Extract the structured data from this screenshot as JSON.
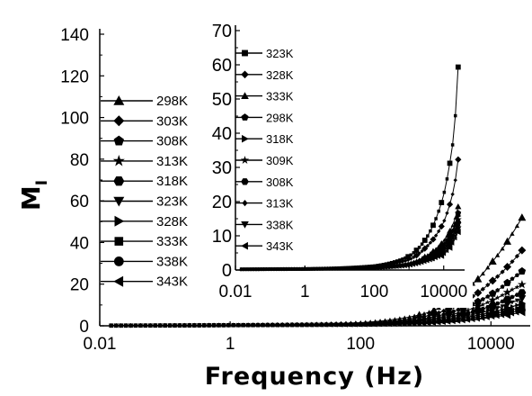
{
  "chart_data": [
    {
      "type": "line",
      "xlabel": "Frequency (Hz)",
      "ylabel": "M",
      "ylabel_sub": "I",
      "x_scale": "log",
      "xlim": [
        0.01,
        40000
      ],
      "ylim": [
        0,
        140
      ],
      "x_ticks": [
        {
          "value": 0.01,
          "label": "0.01"
        },
        {
          "value": 1,
          "label": "1"
        },
        {
          "value": 100,
          "label": "100"
        },
        {
          "value": 10000,
          "label": "10000"
        }
      ],
      "y_ticks": [
        {
          "value": 0,
          "label": "0"
        },
        {
          "value": 20,
          "label": "20"
        },
        {
          "value": 40,
          "label": "40"
        },
        {
          "value": 60,
          "label": "60"
        },
        {
          "value": 80,
          "label": "80"
        },
        {
          "value": 100,
          "label": "100"
        },
        {
          "value": 120,
          "label": "120"
        },
        {
          "value": 140,
          "label": "140"
        }
      ],
      "legend_position": "left",
      "series": [
        {
          "name": "298K",
          "marker": "triangle-up",
          "values": [
            [
              0.015,
              0.1
            ],
            [
              1,
              0.3
            ],
            [
              100,
              1.5
            ],
            [
              1000,
              6
            ],
            [
              3000,
              14
            ],
            [
              10000,
              30
            ],
            [
              20000,
              43
            ],
            [
              35000,
              56
            ]
          ]
        },
        {
          "name": "303K",
          "marker": "diamond",
          "values": [
            [
              0.015,
              0.1
            ],
            [
              1,
              0.3
            ],
            [
              100,
              1.2
            ],
            [
              1000,
              4.5
            ],
            [
              3000,
              10
            ],
            [
              10000,
              21
            ],
            [
              20000,
              30
            ],
            [
              35000,
              39
            ]
          ]
        },
        {
          "name": "308K",
          "marker": "pentagon",
          "values": [
            [
              0.015,
              0.1
            ],
            [
              1,
              0.3
            ],
            [
              100,
              1.0
            ],
            [
              1000,
              3.5
            ],
            [
              3000,
              7.5
            ],
            [
              10000,
              15
            ],
            [
              20000,
              22
            ],
            [
              35000,
              28
            ]
          ]
        },
        {
          "name": "313K",
          "marker": "star",
          "values": [
            [
              0.015,
              0.1
            ],
            [
              1,
              0.3
            ],
            [
              100,
              0.9
            ],
            [
              1000,
              3
            ],
            [
              3000,
              6
            ],
            [
              10000,
              12
            ],
            [
              20000,
              17
            ],
            [
              35000,
              21
            ]
          ]
        },
        {
          "name": "318K",
          "marker": "hexagon",
          "values": [
            [
              0.015,
              0.1
            ],
            [
              1,
              0.3
            ],
            [
              100,
              0.8
            ],
            [
              1000,
              2.5
            ],
            [
              3000,
              5
            ],
            [
              10000,
              9.5
            ],
            [
              20000,
              13.5
            ],
            [
              35000,
              17
            ]
          ]
        },
        {
          "name": "323K",
          "marker": "triangle-down",
          "values": [
            [
              0.015,
              0.1
            ],
            [
              1,
              0.3
            ],
            [
              100,
              0.7
            ],
            [
              1000,
              2
            ],
            [
              3000,
              4
            ],
            [
              10000,
              7.5
            ],
            [
              20000,
              11
            ],
            [
              35000,
              14
            ]
          ]
        },
        {
          "name": "328K",
          "marker": "triangle-right",
          "values": [
            [
              0.015,
              0.1
            ],
            [
              1,
              0.3
            ],
            [
              100,
              0.6
            ],
            [
              1000,
              1.8
            ],
            [
              3000,
              3.5
            ],
            [
              10000,
              6.5
            ],
            [
              20000,
              9
            ],
            [
              35000,
              11.5
            ]
          ]
        },
        {
          "name": "333K",
          "marker": "square",
          "values": [
            [
              0.015,
              0.1
            ],
            [
              1,
              0.3
            ],
            [
              100,
              0.5
            ],
            [
              1000,
              1.5
            ],
            [
              3000,
              3
            ],
            [
              10000,
              5.5
            ],
            [
              20000,
              7.5
            ],
            [
              35000,
              9.5
            ]
          ]
        },
        {
          "name": "338K",
          "marker": "circle",
          "values": [
            [
              0.015,
              0.1
            ],
            [
              1,
              0.3
            ],
            [
              100,
              0.5
            ],
            [
              1000,
              1.2
            ],
            [
              3000,
              2.5
            ],
            [
              10000,
              4.5
            ],
            [
              20000,
              6.5
            ],
            [
              35000,
              8
            ]
          ]
        },
        {
          "name": "343K",
          "marker": "triangle-left",
          "values": [
            [
              0.015,
              0.1
            ],
            [
              1,
              0.3
            ],
            [
              100,
              0.4
            ],
            [
              1000,
              1
            ],
            [
              3000,
              2
            ],
            [
              10000,
              4
            ],
            [
              20000,
              5.5
            ],
            [
              35000,
              7
            ]
          ]
        }
      ]
    },
    {
      "type": "line",
      "x_scale": "log",
      "xlim": [
        0.01,
        40000
      ],
      "ylim": [
        0,
        70
      ],
      "x_ticks": [
        {
          "value": 0.01,
          "label": "0.01"
        },
        {
          "value": 1,
          "label": "1"
        },
        {
          "value": 100,
          "label": "100"
        },
        {
          "value": 10000,
          "label": "10000"
        }
      ],
      "y_ticks": [
        {
          "value": 0,
          "label": "0"
        },
        {
          "value": 10,
          "label": "10"
        },
        {
          "value": 20,
          "label": "20"
        },
        {
          "value": 30,
          "label": "30"
        },
        {
          "value": 40,
          "label": "40"
        },
        {
          "value": 50,
          "label": "50"
        },
        {
          "value": 60,
          "label": "60"
        },
        {
          "value": 70,
          "label": "70"
        }
      ],
      "legend_position": "left",
      "series": [
        {
          "name": "323K",
          "marker": "square",
          "values": [
            [
              0.015,
              0.2
            ],
            [
              1,
              0.3
            ],
            [
              100,
              1.2
            ],
            [
              1000,
              4
            ],
            [
              3000,
              9
            ],
            [
              10000,
              22
            ],
            [
              20000,
              40
            ],
            [
              28000,
              66
            ]
          ]
        },
        {
          "name": "328K",
          "marker": "diamond",
          "values": [
            [
              0.015,
              0.2
            ],
            [
              1,
              0.3
            ],
            [
              100,
              1.0
            ],
            [
              1000,
              3
            ],
            [
              3000,
              6.5
            ],
            [
              10000,
              14
            ],
            [
              20000,
              24
            ],
            [
              28000,
              35
            ]
          ]
        },
        {
          "name": "333K",
          "marker": "triangle-up",
          "values": [
            [
              0.015,
              0.2
            ],
            [
              1,
              0.3
            ],
            [
              100,
              0.8
            ],
            [
              1000,
              2
            ],
            [
              3000,
              4
            ],
            [
              10000,
              8.5
            ],
            [
              20000,
              14
            ],
            [
              28000,
              20
            ]
          ]
        },
        {
          "name": "298K",
          "marker": "pentagon",
          "values": [
            [
              0.015,
              0.2
            ],
            [
              1,
              0.3
            ],
            [
              100,
              0.7
            ],
            [
              1000,
              1.8
            ],
            [
              3000,
              3.5
            ],
            [
              10000,
              7.5
            ],
            [
              20000,
              12.5
            ],
            [
              28000,
              18
            ]
          ]
        },
        {
          "name": "318K",
          "marker": "triangle-right",
          "values": [
            [
              0.015,
              0.2
            ],
            [
              1,
              0.3
            ],
            [
              100,
              0.7
            ],
            [
              1000,
              1.7
            ],
            [
              3000,
              3.3
            ],
            [
              10000,
              7
            ],
            [
              20000,
              12
            ],
            [
              28000,
              17
            ]
          ]
        },
        {
          "name": "309K",
          "marker": "star",
          "values": [
            [
              0.015,
              0.2
            ],
            [
              1,
              0.3
            ],
            [
              100,
              0.6
            ],
            [
              1000,
              1.6
            ],
            [
              3000,
              3.1
            ],
            [
              10000,
              6.5
            ],
            [
              20000,
              11
            ],
            [
              28000,
              16
            ]
          ]
        },
        {
          "name": "308K",
          "marker": "hexagon",
          "values": [
            [
              0.015,
              0.2
            ],
            [
              1,
              0.3
            ],
            [
              100,
              0.6
            ],
            [
              1000,
              1.5
            ],
            [
              3000,
              3
            ],
            [
              10000,
              6
            ],
            [
              20000,
              10.5
            ],
            [
              28000,
              15
            ]
          ]
        },
        {
          "name": "313K",
          "marker": "diamond-small",
          "values": [
            [
              0.015,
              0.2
            ],
            [
              1,
              0.3
            ],
            [
              100,
              0.6
            ],
            [
              1000,
              1.4
            ],
            [
              3000,
              2.8
            ],
            [
              10000,
              5.5
            ],
            [
              20000,
              10
            ],
            [
              28000,
              14
            ]
          ]
        },
        {
          "name": "338K",
          "marker": "triangle-down",
          "values": [
            [
              0.015,
              0.2
            ],
            [
              1,
              0.3
            ],
            [
              100,
              0.5
            ],
            [
              1000,
              1.3
            ],
            [
              3000,
              2.6
            ],
            [
              10000,
              5
            ],
            [
              20000,
              9
            ],
            [
              28000,
              13
            ]
          ]
        },
        {
          "name": "343K",
          "marker": "triangle-left",
          "values": [
            [
              0.015,
              0.2
            ],
            [
              1,
              0.3
            ],
            [
              100,
              0.5
            ],
            [
              1000,
              1.2
            ],
            [
              3000,
              2.4
            ],
            [
              10000,
              4.5
            ],
            [
              20000,
              8.5
            ],
            [
              28000,
              12
            ]
          ]
        }
      ]
    }
  ]
}
